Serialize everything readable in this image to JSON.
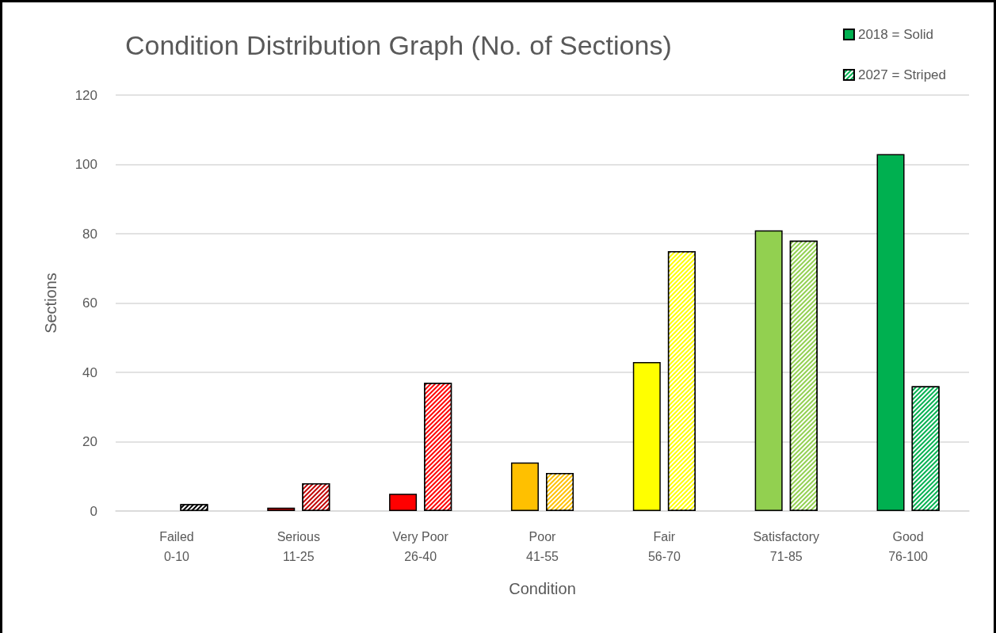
{
  "chart_data": {
    "type": "bar",
    "title": "Condition Distribution Graph (No. of Sections)",
    "xlabel": "Condition",
    "ylabel": "Sections",
    "categories": [
      "Failed\n0-10",
      "Serious\n11-25",
      "Very Poor\n26-40",
      "Poor\n41-55",
      "Fair\n56-70",
      "Satisfactory\n71-85",
      "Good\n76-100"
    ],
    "series": [
      {
        "name": "2018 = Solid",
        "color": "#00b050",
        "colors": [
          "#000000",
          "#c00000",
          "#ff0000",
          "#ffc000",
          "#ffff00",
          "#92d050",
          "#00b050"
        ],
        "values": [
          null,
          1,
          5,
          14,
          43,
          81,
          103
        ]
      },
      {
        "name": "2027 = Striped",
        "color": "#00b050",
        "colors": [
          "#000000",
          "#c00000",
          "#ff0000",
          "#ffc000",
          "#ffff00",
          "#92d050",
          "#00b050"
        ],
        "values": [
          2,
          8,
          37,
          11,
          75,
          78,
          36
        ]
      }
    ],
    "ylim": [
      0,
      120
    ],
    "yticks": [
      0,
      20,
      40,
      60,
      80,
      100,
      120
    ],
    "grid": "y",
    "legend": "top right"
  }
}
